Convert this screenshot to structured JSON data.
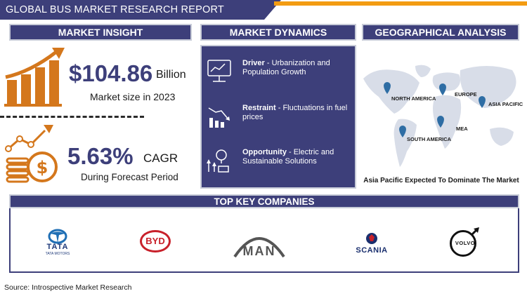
{
  "title": "GLOBAL BUS MARKET RESEARCH REPORT",
  "sections": {
    "insight": "MARKET INSIGHT",
    "dynamics": "MARKET DYNAMICS",
    "geo": "GEOGRAPHICAL ANALYSIS",
    "companies": "TOP KEY COMPANIES"
  },
  "insight": {
    "market_size_value": "$104.86",
    "market_size_unit": "Billion",
    "market_size_label": "Market size in 2023",
    "cagr_value": "5.63%",
    "cagr_unit": "CAGR",
    "cagr_label": "During Forecast Period"
  },
  "dynamics": [
    {
      "label": "Driver",
      "text": " - Urbanization and Population Growth",
      "icon": "monitor-chart-icon"
    },
    {
      "label": "Restraint",
      "text": " - Fluctuations in fuel prices",
      "icon": "declining-chart-icon"
    },
    {
      "label": "Opportunity",
      "text": " - Electric and Sustainable Solutions",
      "icon": "growth-bulb-icon"
    }
  ],
  "geo": {
    "regions": [
      "NORTH AMERICA",
      "EUROPE",
      "ASIA PACIFIC",
      "MEA",
      "SOUTH AMERICA"
    ],
    "caption": "Asia Pacific Expected To Dominate The Market"
  },
  "companies": {
    "tata": "TATA",
    "tata_sub": "TATA MOTORS",
    "byd": "BYD",
    "man": "MAN",
    "scania": "SCANIA",
    "volvo": "VOLVO"
  },
  "source": "Source: Introspective Market Research",
  "colors": {
    "navy": "#3d3f7a",
    "orange": "#d4771c",
    "pin": "#2e6da4",
    "map": "#d8dde8"
  }
}
